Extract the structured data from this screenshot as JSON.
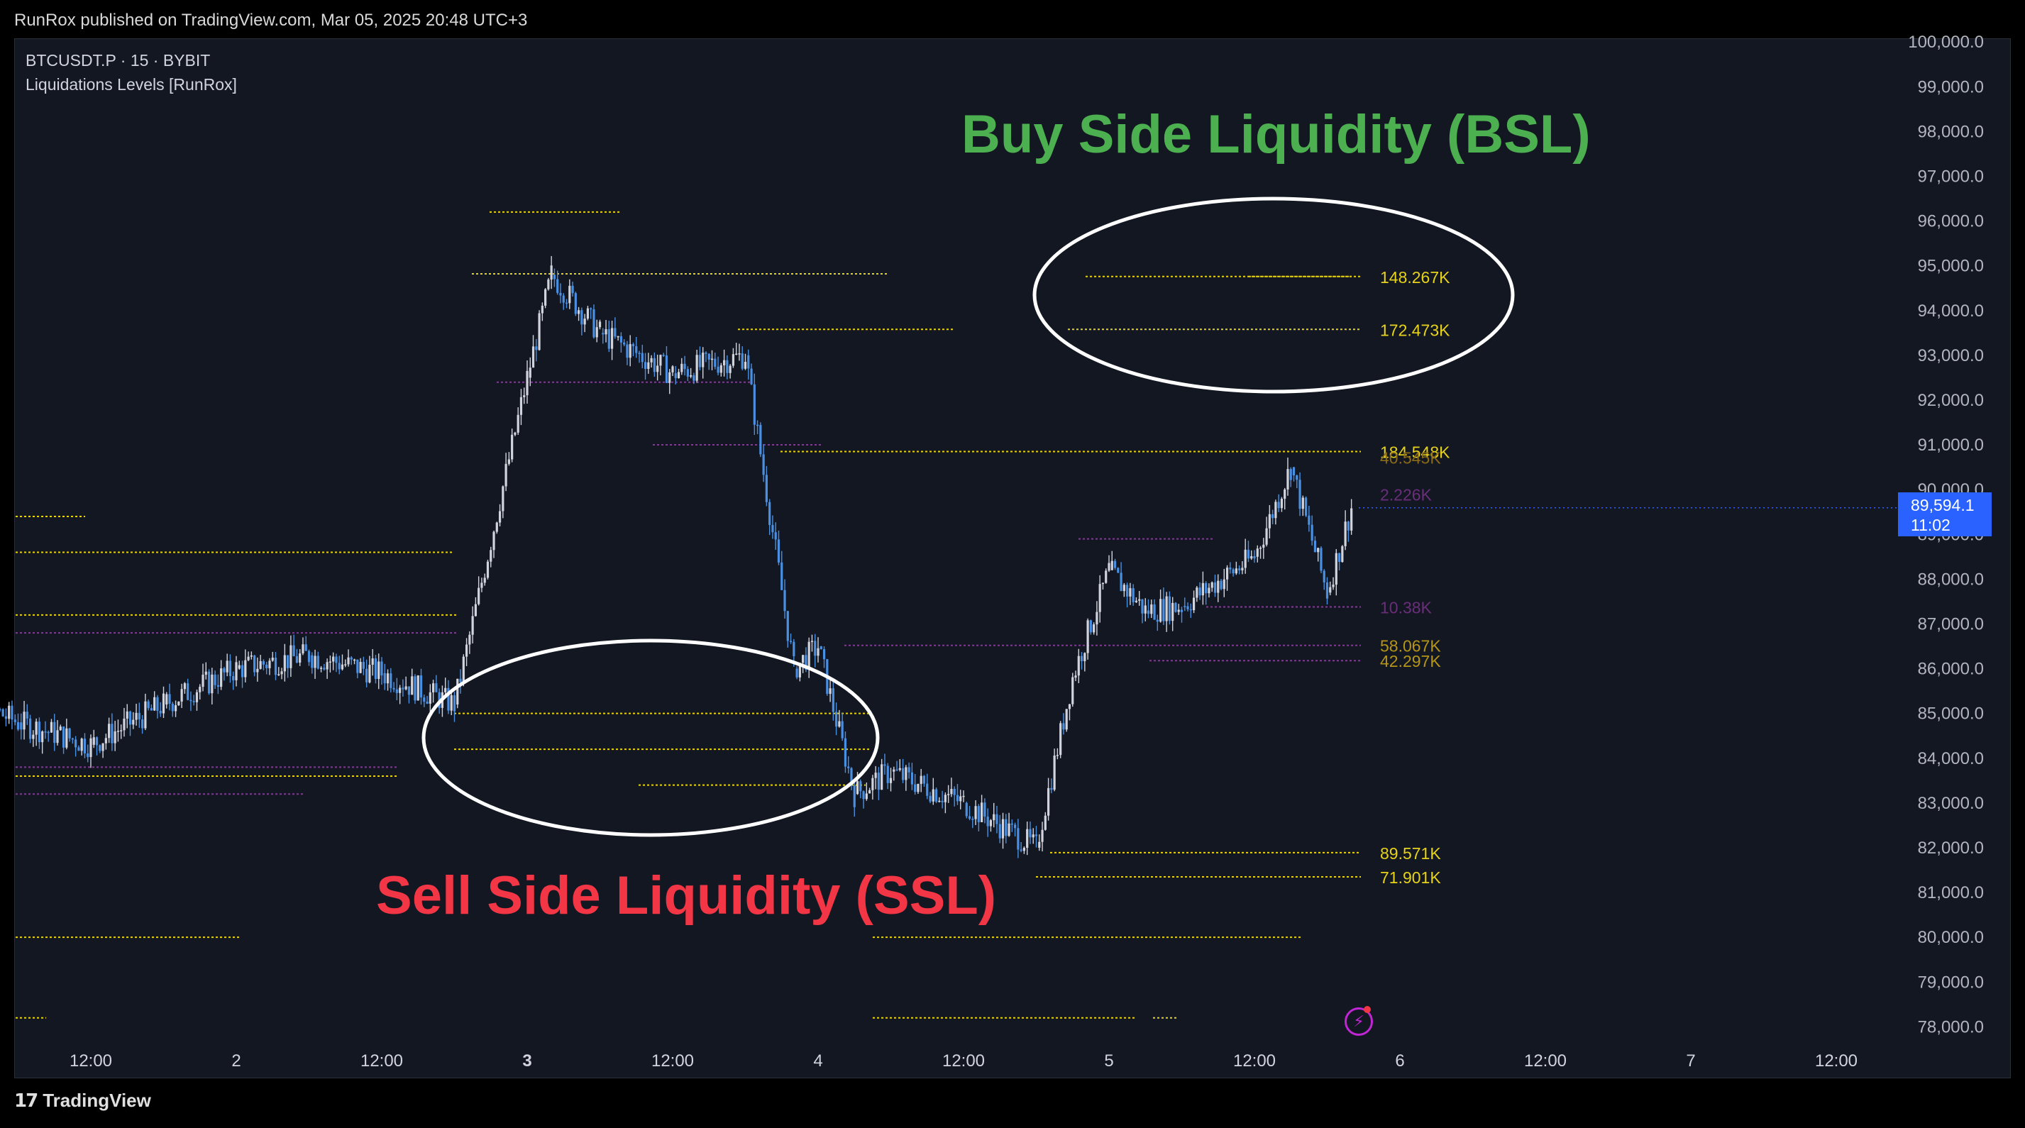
{
  "publisher_line": "RunRox published on TradingView.com, Mar 05, 2025 20:48 UTC+3",
  "legend": {
    "symbol": "BTCUSDT.P · 15 · BYBIT",
    "indicator": "Liquidations Levels [RunRox]"
  },
  "annotations": {
    "bsl_title": "Buy Side Liquidity (BSL)",
    "ssl_title": "Sell Side Liquidity (SSL)"
  },
  "last_price": {
    "value": "89,594.1",
    "countdown": "11:02"
  },
  "branding": {
    "logo_mark": "17",
    "logo_text": "TradingView"
  },
  "icons": {
    "alert": "lightning-alert-icon"
  },
  "colors": {
    "background": "#131722",
    "candle_up": "#d1d4dc",
    "candle_down": "#4a90e2",
    "level_yellow": "#e7d21a",
    "level_purple": "#7b3f8e",
    "bsl_text": "#4caf50",
    "ssl_text": "#f23645",
    "ellipse": "#ffffff",
    "price_tag": "#2962ff"
  },
  "chart_data": {
    "type": "line",
    "series": [
      {
        "x": [
          "1 00:00",
          "1 06:00",
          "1 12:00",
          "1 18:00",
          "2 00:00",
          "2 06:00",
          "2 12:00",
          "2 18:00",
          "3 00:00",
          "3 02:00",
          "3 06:00",
          "3 12:00",
          "3 18:00",
          "3 22:00",
          "4 00:00",
          "4 03:00",
          "4 06:00",
          "4 12:00",
          "4 18:00",
          "4 21:00",
          "5 00:00",
          "5 03:00",
          "5 06:00",
          "5 12:00",
          "5 15:00",
          "5 18:00",
          "5 20:00"
        ],
        "values": [
          85600,
          84800,
          84300,
          85200,
          86000,
          86300,
          85900,
          85200,
          92500,
          94800,
          93500,
          92600,
          93000,
          86000,
          86500,
          83200,
          83700,
          83000,
          82000,
          85800,
          88200,
          87300,
          87400,
          88500,
          90500,
          87700,
          89594
        ]
      }
    ],
    "x_tick_labels": [
      "12:00",
      "2",
      "12:00",
      "3",
      "12:00",
      "4",
      "12:00",
      "5",
      "12:00",
      "6",
      "12:00",
      "7",
      "12:00"
    ],
    "y_tick_labels": [
      "100,000.0",
      "99,000.0",
      "98,000.0",
      "97,000.0",
      "96,000.0",
      "95,000.0",
      "94,000.0",
      "93,000.0",
      "92,000.0",
      "91,000.0",
      "90,000.0",
      "89,000.0",
      "88,000.0",
      "87,000.0",
      "86,000.0",
      "85,000.0",
      "84,000.0",
      "83,000.0",
      "82,000.0",
      "81,000.0",
      "80,000.0",
      "79,000.0",
      "78,000.0"
    ],
    "ylim": [
      77600,
      100050
    ],
    "liquidation_labels": [
      {
        "text": "148.267K",
        "price": 94760,
        "color": "#e7d21a"
      },
      {
        "text": "172.473K",
        "price": 93580,
        "color": "#e7d21a"
      },
      {
        "text": "184.548K",
        "price": 90850,
        "color": "#e7d21a"
      },
      {
        "text": "40.545K",
        "price": 90720,
        "color": "#8a6a18"
      },
      {
        "text": "2.226K",
        "price": 89900,
        "color": "#6a2e7a"
      },
      {
        "text": "10.38K",
        "price": 87380,
        "color": "#6a2e7a"
      },
      {
        "text": "58.067K",
        "price": 86520,
        "color": "#b59517"
      },
      {
        "text": "42.297K",
        "price": 86180,
        "color": "#b59517"
      },
      {
        "text": "89.571K",
        "price": 81890,
        "color": "#e7d21a"
      },
      {
        "text": "71.901K",
        "price": 81350,
        "color": "#e7d21a"
      }
    ]
  }
}
